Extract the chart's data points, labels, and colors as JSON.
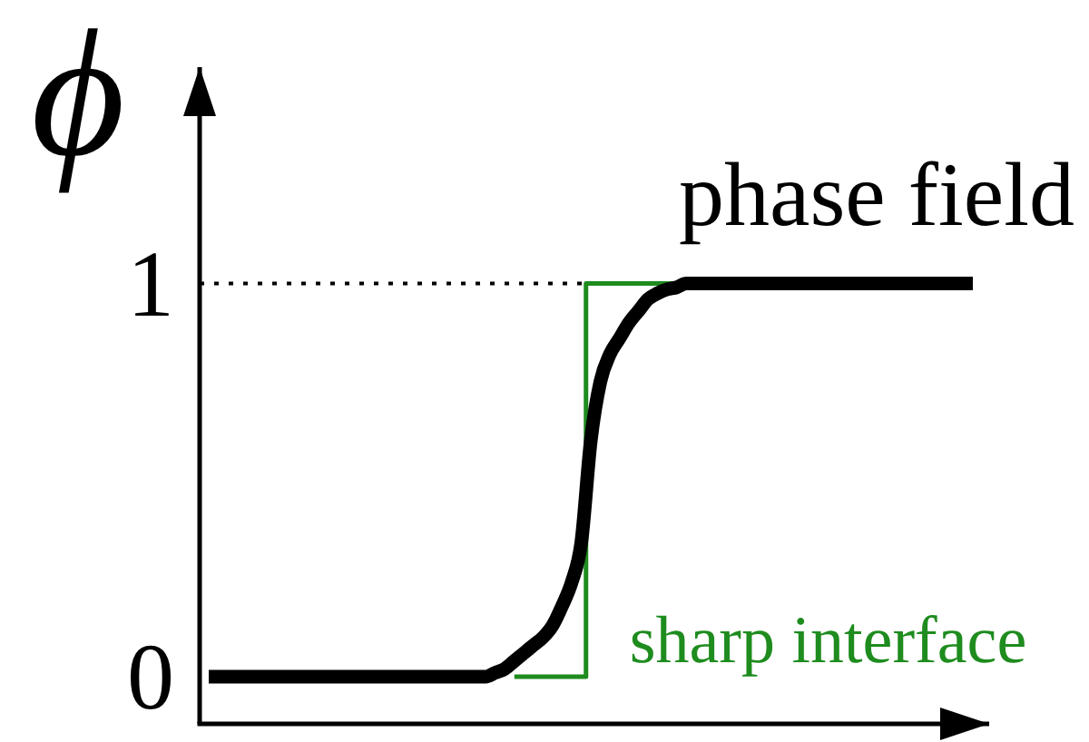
{
  "chart_data": {
    "type": "line",
    "ylabel": "ϕ",
    "categories": [
      null,
      null,
      null,
      null,
      null,
      null,
      null,
      null,
      null,
      null,
      null,
      null,
      null,
      null,
      null,
      null,
      null,
      null,
      null,
      null,
      null,
      null,
      null,
      null,
      null,
      null,
      null,
      null,
      null,
      null,
      null,
      null,
      null,
      null,
      null,
      null,
      null,
      null,
      null,
      null,
      null,
      null,
      null,
      null,
      null,
      null,
      null,
      null,
      null,
      null,
      null,
      null,
      null,
      null,
      null,
      null,
      null,
      null,
      null,
      null,
      null,
      null,
      null,
      null,
      null,
      null,
      null,
      null,
      null,
      null,
      null,
      null,
      null,
      null,
      null,
      null,
      null,
      null,
      null,
      null,
      null
    ],
    "ylim": [
      -0.12,
      1.55
    ],
    "yticks": [
      0,
      1
    ],
    "tick_labels": "y",
    "ref_lines": [
      {
        "axis": "y",
        "value": 1,
        "line_style": "dotted",
        "color": "#000000"
      }
    ],
    "series": [
      {
        "name": "sharp interface",
        "type": "step",
        "color": "#1e8c1e",
        "values": [
          null,
          null,
          null,
          null,
          null,
          null,
          null,
          null,
          null,
          null,
          null,
          null,
          null,
          null,
          null,
          null,
          null,
          null,
          null,
          null,
          null,
          null,
          null,
          null,
          null,
          null,
          null,
          null,
          null,
          null,
          null,
          null,
          0,
          0,
          0,
          0,
          0,
          0,
          0,
          0,
          1,
          1,
          1,
          1,
          1,
          1,
          1,
          1,
          1,
          1,
          1,
          null,
          null,
          null,
          null,
          null,
          null,
          null,
          null,
          null,
          null,
          null,
          null,
          null,
          null,
          null,
          null,
          null,
          null,
          null,
          null,
          null,
          null,
          null,
          null,
          null,
          null,
          null,
          null,
          null,
          null
        ]
      },
      {
        "name": "phase field",
        "color": "#000000",
        "values": [
          0,
          0,
          0,
          0,
          0,
          0,
          0,
          0,
          0,
          0,
          0,
          0,
          0,
          0,
          0,
          0,
          0,
          0,
          0,
          0,
          0,
          0,
          0,
          0,
          0,
          0,
          0,
          0,
          0,
          0,
          0.01,
          0.02,
          0.04,
          0.06,
          0.08,
          0.1,
          0.13,
          0.18,
          0.24,
          0.34,
          0.6,
          0.75,
          0.82,
          0.86,
          0.9,
          0.93,
          0.96,
          0.975,
          0.985,
          0.99,
          1,
          1,
          1,
          1,
          1,
          1,
          1,
          1,
          1,
          1,
          1,
          1,
          1,
          1,
          1,
          1,
          1,
          1,
          1,
          1,
          1,
          1,
          1,
          1,
          1,
          1,
          1,
          1,
          1,
          1,
          1
        ]
      }
    ]
  }
}
